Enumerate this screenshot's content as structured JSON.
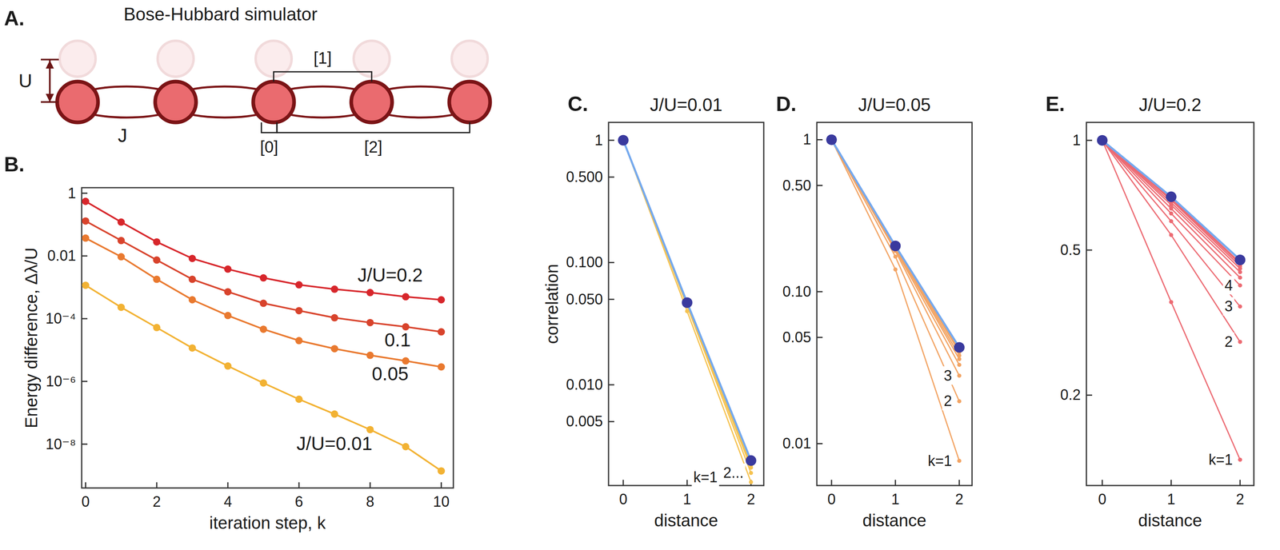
{
  "diagram": {
    "label": "A.",
    "title": "Bose-Hubbard simulator",
    "sites": 5,
    "interaction_label": "U",
    "hopping_label": "J",
    "brackets": [
      {
        "label": "[1]",
        "from": 2,
        "to": 3
      },
      {
        "label": "[0]",
        "from": 2,
        "to": 2
      },
      {
        "label": "[2]",
        "from": 2,
        "to": 4
      }
    ]
  },
  "chart_data": [
    {
      "type": "line",
      "label": "B.",
      "x_label": "iteration step, k",
      "y_label": "Energy difference, Δλ/U",
      "log": "y",
      "marker": "dot",
      "x": [
        0,
        1,
        2,
        3,
        4,
        5,
        6,
        7,
        8,
        9,
        10
      ],
      "xlim": [
        -0.11,
        10.34
      ],
      "xticks": [
        0,
        2,
        4,
        6,
        8,
        10
      ],
      "ylim": [
        4e-10,
        1.5
      ],
      "yticks": [
        1,
        0.01,
        {
          "value": 0.0001,
          "label": "10⁻⁴"
        },
        {
          "value": 1e-06,
          "label": "10⁻⁶"
        },
        {
          "value": 1e-08,
          "label": "10⁻⁸"
        }
      ],
      "series": [
        {
          "name": "J/U=0.2",
          "color": "#d7262b",
          "values": [
            0.55,
            0.12,
            0.028,
            0.0083,
            0.0038,
            0.002,
            0.0012,
            0.00087,
            0.00068,
            0.0005,
            0.0004
          ]
        },
        {
          "name": "0.1",
          "color": "#d8432c",
          "values": [
            0.13,
            0.031,
            0.0074,
            0.0018,
            0.00072,
            0.00031,
            0.00018,
            0.000107,
            7.5e-05,
            5.5e-05,
            3.8e-05
          ]
        },
        {
          "name": "0.05",
          "color": "#e9792f",
          "values": [
            0.037,
            0.0094,
            0.0018,
            0.0004,
            0.000126,
            4.6e-05,
            2e-05,
            1.1e-05,
            6.8e-06,
            4.5e-06,
            2.9e-06
          ]
        },
        {
          "name": "J/U=0.01",
          "color": "#f2b233",
          "values": [
            0.00116,
            0.00023,
            5.2e-05,
            1.16e-05,
            3.1e-06,
            8.9e-07,
            2.7e-07,
            9.1e-08,
            2.9e-08,
            8.3e-09,
            1.4e-09
          ]
        }
      ]
    },
    {
      "type": "line",
      "label": "C.",
      "title": "J/U=0.01",
      "x_label": "distance",
      "y_label": "correlation",
      "log": "y",
      "x": [
        0,
        1,
        2
      ],
      "xlim": [
        -0.23,
        2.2
      ],
      "xticks": [
        0,
        1,
        2
      ],
      "ylim": [
        0.0015,
        1.4
      ],
      "yticks": [
        1,
        {
          "value": 0.5,
          "label": "0.500"
        },
        {
          "value": 0.1,
          "label": "0.100"
        },
        {
          "value": 0.05,
          "label": "0.050"
        },
        {
          "value": 0.01,
          "label": "0.010"
        },
        {
          "value": 0.005,
          "label": "0.005"
        }
      ],
      "series": [
        {
          "name": "k=1",
          "color": "#f5c250",
          "marker": "point",
          "values": [
            1,
            0.04,
            0.0016
          ]
        },
        {
          "name": "2...",
          "color": "#f5c250",
          "marker": "point",
          "values": [
            1,
            0.044,
            0.0019
          ]
        },
        {
          "color": "#f5c250",
          "marker": "point",
          "values": [
            1,
            0.045,
            0.0021
          ]
        },
        {
          "color": "#f5c250",
          "marker": "point",
          "values": [
            1,
            0.046,
            0.0022
          ]
        },
        {
          "color": "#f5c250",
          "marker": "point",
          "values": [
            1,
            0.0462,
            0.00225
          ]
        },
        {
          "color": "#f5c250",
          "marker": "point",
          "values": [
            1,
            0.0465,
            0.0023
          ]
        },
        {
          "color": "#f5c250",
          "marker": "point",
          "values": [
            1,
            0.0467,
            0.00232
          ]
        },
        {
          "color": "#f5c250",
          "marker": "point",
          "values": [
            1,
            0.0468,
            0.00234
          ]
        },
        {
          "color": "#f5c250",
          "marker": "point",
          "values": [
            1,
            0.0469,
            0.00236
          ]
        },
        {
          "color": "#f5c250",
          "marker": "point",
          "values": [
            1,
            0.047,
            0.00238
          ]
        },
        {
          "color": "#74a9ef",
          "marker": "circle",
          "values": [
            1,
            0.047,
            0.0024
          ]
        }
      ]
    },
    {
      "type": "line",
      "label": "D.",
      "title": "J/U=0.05",
      "x_label": "distance",
      "log": "y",
      "x": [
        0,
        1,
        2
      ],
      "xlim": [
        -0.23,
        2.2
      ],
      "xticks": [
        0,
        1,
        2
      ],
      "ylim": [
        0.0053,
        1.3
      ],
      "yticks": [
        1,
        {
          "value": 0.5,
          "label": "0.50"
        },
        {
          "value": 0.1,
          "label": "0.10"
        },
        0.05,
        0.01
      ],
      "series": [
        {
          "name": "k=1",
          "color": "#f2a464",
          "marker": "point",
          "values": [
            1,
            0.14,
            0.0077
          ]
        },
        {
          "name": "2",
          "color": "#f2a464",
          "marker": "point",
          "values": [
            1,
            0.17,
            0.019
          ]
        },
        {
          "name": "3",
          "color": "#f2a464",
          "marker": "point",
          "values": [
            1,
            0.185,
            0.028
          ]
        },
        {
          "color": "#f2a464",
          "marker": "point",
          "values": [
            1,
            0.19,
            0.033
          ]
        },
        {
          "color": "#f2a464",
          "marker": "point",
          "values": [
            1,
            0.194,
            0.036
          ]
        },
        {
          "color": "#f2a464",
          "marker": "point",
          "values": [
            1,
            0.196,
            0.038
          ]
        },
        {
          "color": "#f2a464",
          "marker": "point",
          "values": [
            1,
            0.198,
            0.04
          ]
        },
        {
          "color": "#f2a464",
          "marker": "point",
          "values": [
            1,
            0.199,
            0.041
          ]
        },
        {
          "color": "#f2a464",
          "marker": "point",
          "values": [
            1,
            0.2,
            0.042
          ]
        },
        {
          "color": "#f2a464",
          "marker": "point",
          "values": [
            1,
            0.2,
            0.0425
          ]
        },
        {
          "color": "#74a9ef",
          "marker": "circle",
          "values": [
            1,
            0.2,
            0.043
          ]
        }
      ]
    },
    {
      "type": "line",
      "label": "E.",
      "title": "J/U=0.2",
      "x_label": "distance",
      "log": "y",
      "x": [
        0,
        1,
        2
      ],
      "xlim": [
        -0.23,
        2.2
      ],
      "xticks": [
        0,
        1,
        2
      ],
      "ylim": [
        0.113,
        1.12
      ],
      "yticks": [
        1,
        0.5,
        0.2
      ],
      "series": [
        {
          "name": "k=1",
          "color": "#ec6a72",
          "marker": "point",
          "values": [
            1,
            0.36,
            0.133
          ]
        },
        {
          "name": "2",
          "color": "#ec6a72",
          "marker": "point",
          "values": [
            1,
            0.55,
            0.28
          ]
        },
        {
          "name": "3",
          "color": "#ec6a72",
          "marker": "point",
          "values": [
            1,
            0.6,
            0.35
          ]
        },
        {
          "name": "4",
          "color": "#ec6a72",
          "marker": "point",
          "values": [
            1,
            0.63,
            0.4
          ]
        },
        {
          "color": "#ec6a72",
          "marker": "point",
          "values": [
            1,
            0.65,
            0.42
          ]
        },
        {
          "color": "#ec6a72",
          "marker": "point",
          "values": [
            1,
            0.665,
            0.435
          ]
        },
        {
          "color": "#ec6a72",
          "marker": "point",
          "values": [
            1,
            0.675,
            0.445
          ]
        },
        {
          "color": "#ec6a72",
          "marker": "point",
          "values": [
            1,
            0.685,
            0.452
          ]
        },
        {
          "color": "#ec6a72",
          "marker": "point",
          "values": [
            1,
            0.69,
            0.458
          ]
        },
        {
          "color": "#ec6a72",
          "marker": "point",
          "values": [
            1,
            0.695,
            0.462
          ]
        },
        {
          "color": "#74a9ef",
          "marker": "circle",
          "values": [
            1,
            0.7,
            0.47
          ]
        }
      ]
    }
  ]
}
